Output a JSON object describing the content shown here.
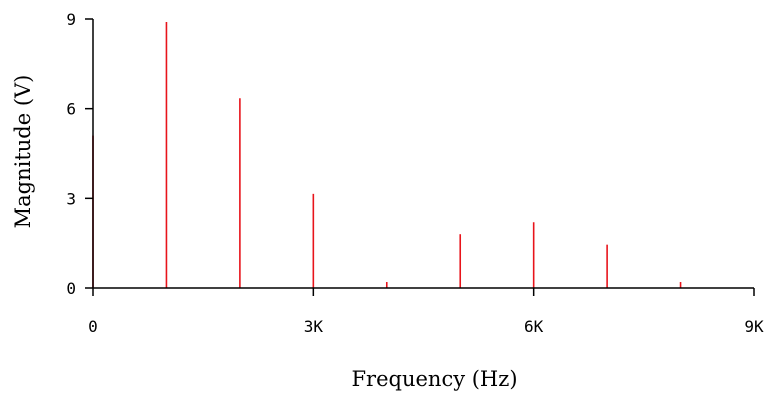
{
  "chart_data": {
    "type": "bar",
    "subtype": "stem",
    "title": "",
    "xlabel": "Frequency (Hz)",
    "ylabel": "Magnitude (V)",
    "xlim": [
      0,
      9000
    ],
    "ylim": [
      0,
      9
    ],
    "x_ticks": [
      {
        "value": 0,
        "label": "0"
      },
      {
        "value": 3000,
        "label": "3K"
      },
      {
        "value": 6000,
        "label": "6K"
      },
      {
        "value": 9000,
        "label": "9K"
      }
    ],
    "y_ticks": [
      {
        "value": 0,
        "label": "0"
      },
      {
        "value": 3,
        "label": "3"
      },
      {
        "value": 6,
        "label": "6"
      },
      {
        "value": 9,
        "label": "9"
      }
    ],
    "grid": false,
    "legend": "none",
    "series": [
      {
        "color": "#e8141b",
        "points": [
          {
            "x": 0,
            "y": 5.1
          },
          {
            "x": 1000,
            "y": 8.9
          },
          {
            "x": 2000,
            "y": 6.35
          },
          {
            "x": 3000,
            "y": 3.15
          },
          {
            "x": 4000,
            "y": 0.2
          },
          {
            "x": 5000,
            "y": 1.8
          },
          {
            "x": 6000,
            "y": 2.2
          },
          {
            "x": 7000,
            "y": 1.45
          },
          {
            "x": 8000,
            "y": 0.2
          }
        ]
      }
    ]
  }
}
